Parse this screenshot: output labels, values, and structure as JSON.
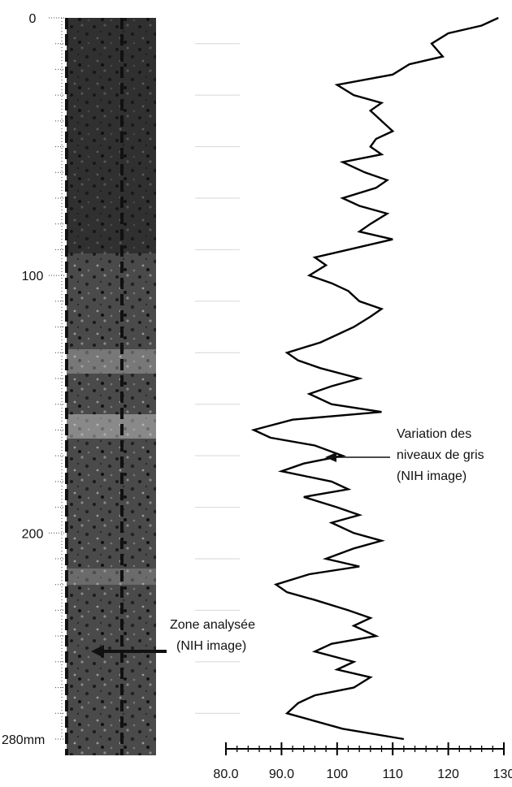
{
  "chart_data": {
    "type": "line",
    "title": "",
    "xlabel": "",
    "ylabel": "",
    "orientation": "vertical-depth",
    "y_axis": {
      "ticks": [
        0,
        100,
        200
      ],
      "last_label": "280mm",
      "ylim": [
        0,
        280
      ],
      "inverted": true
    },
    "x_axis": {
      "tick_labels": [
        "80.0",
        "90.0",
        "100",
        "110",
        "120",
        "130"
      ],
      "tick_values": [
        80,
        90,
        100,
        110,
        120,
        130
      ],
      "xlim": [
        80,
        130
      ]
    },
    "series": [
      {
        "name": "",
        "depth": [
          0,
          3,
          6,
          10,
          15,
          18,
          22,
          26,
          30,
          33,
          36,
          40,
          44,
          47,
          50,
          53,
          56,
          60,
          63,
          66,
          70,
          73,
          76,
          80,
          83,
          86,
          90,
          93,
          96,
          100,
          103,
          106,
          110,
          113,
          116,
          120,
          123,
          126,
          130,
          133,
          136,
          140,
          143,
          146,
          150,
          153,
          156,
          160,
          163,
          166,
          170,
          173,
          176,
          180,
          183,
          186,
          190,
          193,
          196,
          200,
          203,
          206,
          210,
          213,
          216,
          220,
          223,
          226,
          230,
          233,
          236,
          240,
          243,
          246,
          250,
          253,
          256,
          260,
          263,
          266,
          270,
          273,
          276,
          280
        ],
        "values": [
          129,
          126,
          120,
          117,
          119,
          113,
          110,
          100,
          103,
          108,
          106,
          108,
          110,
          107,
          106,
          108,
          101,
          105,
          109,
          107,
          101,
          104,
          109,
          106,
          104,
          110,
          102,
          96,
          98,
          95,
          99,
          102,
          104,
          108,
          106,
          103,
          100,
          97,
          91,
          93,
          97,
          104,
          99,
          95,
          99,
          108,
          92,
          85,
          88,
          96,
          101,
          94,
          90,
          99,
          102,
          94,
          100,
          104,
          99,
          103,
          108,
          103,
          98,
          104,
          95,
          89,
          91,
          96,
          102,
          106,
          103,
          107,
          99,
          96,
          103,
          100,
          106,
          103,
          96,
          93,
          91,
          96,
          101,
          112
        ]
      }
    ],
    "annotations": [
      {
        "text_lines": [
          "Variation des",
          "niveaux de gris",
          "(NIH image)"
        ]
      },
      {
        "text_lines": [
          "Zone analysée",
          "(NIH image)"
        ]
      }
    ]
  }
}
